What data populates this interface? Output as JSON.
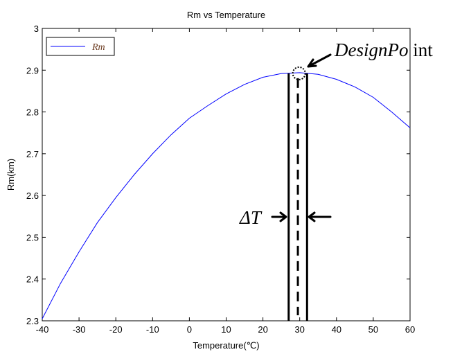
{
  "chart_data": {
    "type": "line",
    "title": "Rm vs Temperature",
    "xlabel": "Temperature(℃)",
    "ylabel": "Rm(km)",
    "xlim": [
      -40,
      60
    ],
    "ylim": [
      2.3,
      3.0
    ],
    "xticks": [
      "-40",
      "-30",
      "-20",
      "-10",
      "0",
      "10",
      "20",
      "30",
      "40",
      "50",
      "60"
    ],
    "yticks": [
      "2.3",
      "2.4",
      "2.5",
      "2.6",
      "2.7",
      "2.8",
      "2.9",
      "3"
    ],
    "grid": false,
    "legend_placement": "top-left",
    "series": [
      {
        "name": "Rm",
        "color": "#0000ff",
        "x": [
          -40,
          -35,
          -30,
          -25,
          -20,
          -15,
          -10,
          -5,
          0,
          5,
          10,
          15,
          20,
          25,
          30,
          35,
          40,
          45,
          50,
          55,
          60
        ],
        "y": [
          2.305,
          2.39,
          2.465,
          2.535,
          2.595,
          2.65,
          2.7,
          2.745,
          2.785,
          2.815,
          2.843,
          2.866,
          2.883,
          2.892,
          2.894,
          2.89,
          2.878,
          2.86,
          2.835,
          2.8,
          2.762
        ]
      }
    ],
    "annotations": {
      "design_point": {
        "text_italic": "DesignPo",
        "text_upright": " int",
        "x": 30,
        "y": 2.894
      },
      "delta_t": {
        "text": "ΔT",
        "x_left": 27,
        "x_center": 29.5,
        "x_right": 32
      }
    }
  }
}
